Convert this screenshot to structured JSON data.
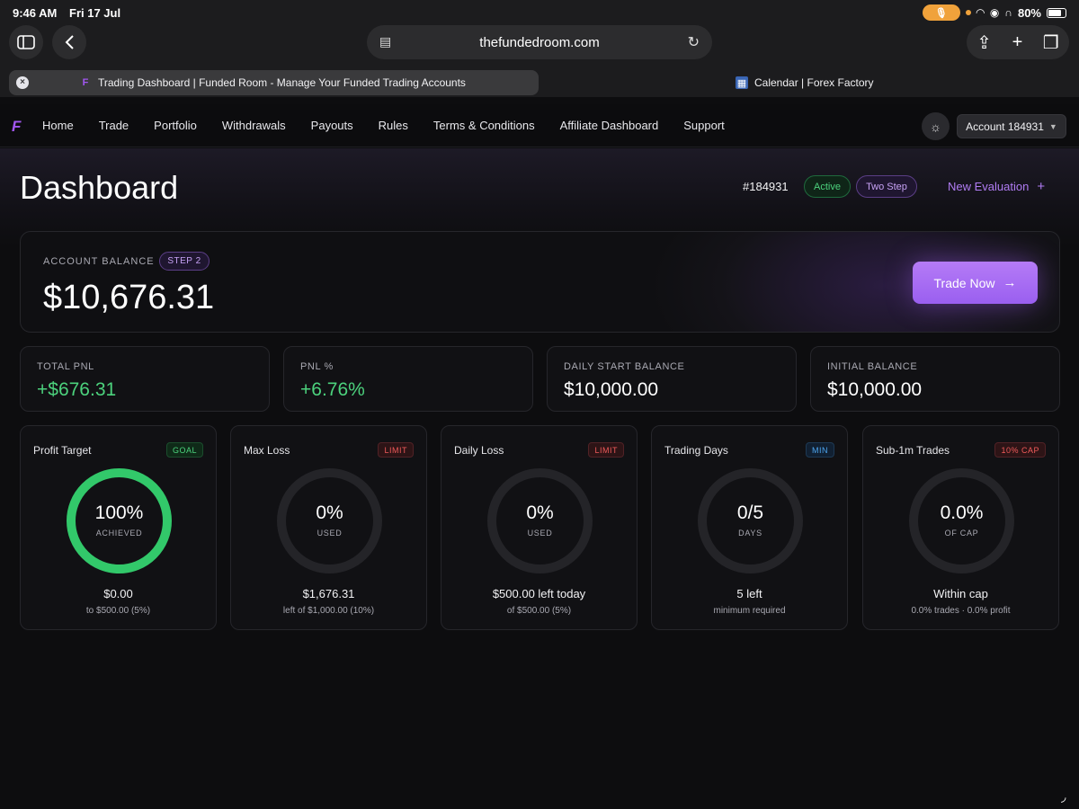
{
  "status_bar": {
    "time": "9:46 AM",
    "date": "Fri 17 Jul",
    "battery": "80%",
    "battery_level": 0.8
  },
  "browser": {
    "url": "thefundedroom.com",
    "tabs": [
      {
        "title": "Trading Dashboard | Funded Room - Manage Your Funded Trading Accounts",
        "favicon": "F",
        "active": true
      },
      {
        "title": "Calendar | Forex Factory",
        "favicon": "calendar-icon",
        "active": false
      }
    ]
  },
  "nav": {
    "brand": "F",
    "links": [
      "Home",
      "Trade",
      "Portfolio",
      "Withdrawals",
      "Payouts",
      "Rules",
      "Terms & Conditions",
      "Affiliate Dashboard",
      "Support"
    ],
    "account_button": "Account 184931"
  },
  "header": {
    "title": "Dashboard",
    "account_id": "#184931",
    "status_badge": "Active",
    "phase_badge": "Two Step",
    "new_evaluation": "New Evaluation"
  },
  "balance": {
    "label": "ACCOUNT BALANCE",
    "step": "STEP 2",
    "value": "$10,676.31",
    "trade_button": "Trade Now"
  },
  "stats": [
    {
      "label": "TOTAL PNL",
      "value": "+$676.31"
    },
    {
      "label": "PNL %",
      "value": "+6.76%"
    },
    {
      "label": "DAILY START BALANCE",
      "value": "$10,000.00"
    },
    {
      "label": "INITIAL BALANCE",
      "value": "$10,000.00"
    }
  ],
  "metrics": [
    {
      "title": "Profit Target",
      "tag": "GOAL",
      "ring_value": "100%",
      "ring_label": "ACHIEVED",
      "main": "$0.00",
      "sub": "to $500.00 (5%)",
      "progress": 1.0
    },
    {
      "title": "Max Loss",
      "tag": "LIMIT",
      "ring_value": "0%",
      "ring_label": "USED",
      "main": "$1,676.31",
      "sub": "left of $1,000.00 (10%)",
      "progress": 0
    },
    {
      "title": "Daily Loss",
      "tag": "LIMIT",
      "ring_value": "0%",
      "ring_label": "USED",
      "main": "$500.00 left today",
      "sub": "of $500.00 (5%)",
      "progress": 0
    },
    {
      "title": "Trading Days",
      "tag": "MIN",
      "ring_value": "0/5",
      "ring_label": "DAYS",
      "main": "5 left",
      "sub": "minimum required",
      "progress": 0
    },
    {
      "title": "Sub-1m Trades",
      "tag": "10% CAP",
      "ring_value": "0.0%",
      "ring_label": "OF CAP",
      "main": "Within cap",
      "sub": "0.0% trades · 0.0% profit",
      "progress": 0
    }
  ],
  "colors": {
    "accent": "#a257f0",
    "positive": "#4cd27d",
    "limit": "#f05a5a",
    "min": "#4ea6f0"
  }
}
